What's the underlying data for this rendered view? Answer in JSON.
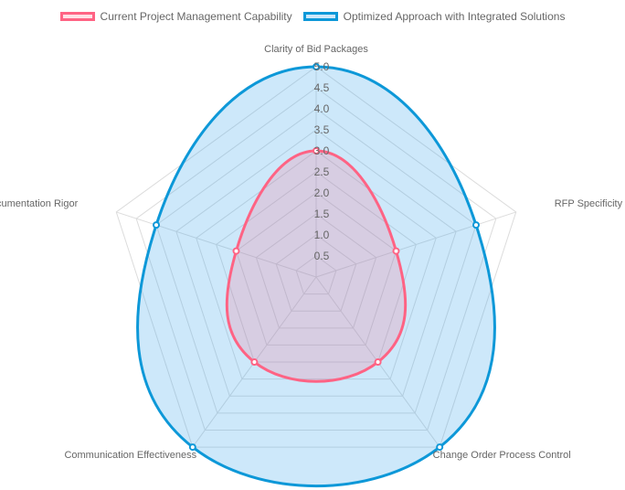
{
  "chart_data": {
    "type": "radar",
    "title": "",
    "axes": [
      "Clarity of Bid Packages",
      "RFP Specificity",
      "Change Order Process Control",
      "Communication Effectiveness",
      "Documentation Rigor"
    ],
    "series": [
      {
        "name": "Current Project Management Capability",
        "values": [
          3,
          2,
          2.5,
          2.5,
          2
        ],
        "line_color": "#ff6384",
        "fill_color": "rgba(255,99,132,0.2)"
      },
      {
        "name": "Optimized Approach with Integrated Solutions",
        "values": [
          5,
          4,
          5,
          5,
          4
        ],
        "line_color": "#0d98d8",
        "fill_color": "rgba(54,162,235,0.25)"
      }
    ],
    "r_range": [
      0,
      5
    ],
    "ticks": [
      "0.5",
      "1.0",
      "1.5",
      "2.0",
      "2.5",
      "3.0",
      "3.5",
      "4.0",
      "4.5",
      "5.0"
    ],
    "tick_values": [
      0.5,
      1,
      1.5,
      2,
      2.5,
      3,
      3.5,
      4,
      4.5,
      5
    ],
    "legend_position": "top",
    "grid": true
  }
}
